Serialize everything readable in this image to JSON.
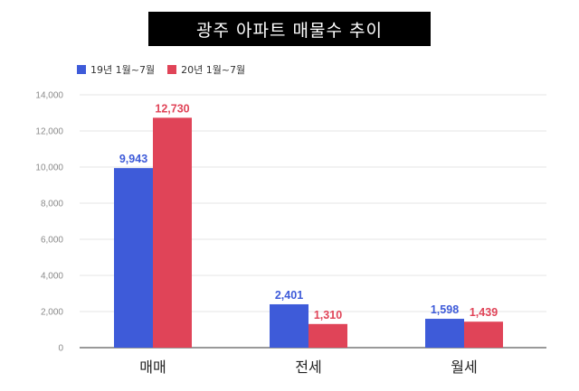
{
  "chart_data": {
    "type": "bar",
    "title": "광주 아파트 매물수 추이",
    "categories": [
      "매매",
      "전세",
      "월세"
    ],
    "series": [
      {
        "name": "19년 1월~7월",
        "color": "#3e5bd9",
        "values": [
          9943,
          2401,
          1598
        ],
        "labels": [
          "9,943",
          "2,401",
          "1,598"
        ]
      },
      {
        "name": "20년 1월~7월",
        "color": "#e04458",
        "values": [
          12730,
          1310,
          1439
        ],
        "labels": [
          "12,730",
          "1,310",
          "1,439"
        ]
      }
    ],
    "ylim": [
      0,
      14000
    ],
    "yticks": [
      0,
      2000,
      4000,
      6000,
      8000,
      10000,
      12000,
      14000
    ],
    "ytick_labels": [
      "0",
      "2,000",
      "4,000",
      "6,000",
      "8,000",
      "10,000",
      "12,000",
      "14,000"
    ],
    "xlabel": "",
    "ylabel": "",
    "grid": true,
    "legend": "top-left"
  }
}
